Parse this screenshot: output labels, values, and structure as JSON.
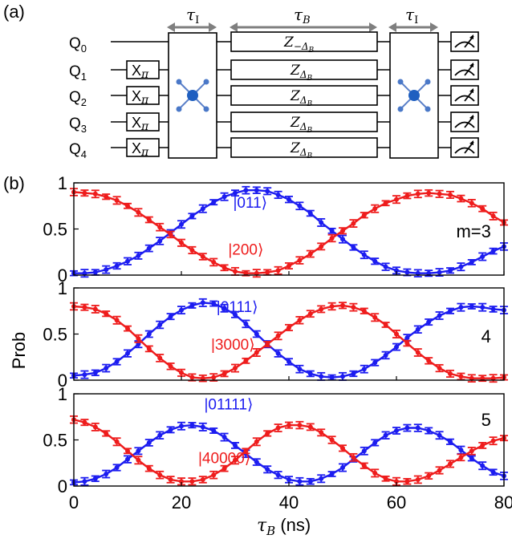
{
  "panel_a": {
    "label": "(a)",
    "qubits": [
      "Q",
      "Q",
      "Q",
      "Q",
      "Q"
    ],
    "qubit_subscripts": [
      "0",
      "1",
      "2",
      "3",
      "4"
    ],
    "prep_gate": "X",
    "prep_gate_sub": "π",
    "prep_rows": [
      1,
      2,
      3,
      4
    ],
    "interaction_time": "τ",
    "interaction_time_sub": "I",
    "bath_time": "τ",
    "bath_time_sub": "B",
    "z_gate": "Z",
    "z_sub_first": "−Δ",
    "z_sub_rest": "Δ",
    "z_sub_sub": "B"
  },
  "panel_b_label": "(b)",
  "colors": {
    "blue": "#1c1cf0",
    "red": "#ee1c1c",
    "gate_line": "#000000",
    "arrow": "#7f7f7f"
  },
  "chart_data": [
    {
      "type": "scatter",
      "panel": "m=3",
      "panel_tag": "m=3",
      "xlim": [
        0,
        80
      ],
      "ylim": [
        0,
        1
      ],
      "yticks": [
        "0",
        "0.5",
        "1"
      ],
      "x": [
        0,
        2,
        4,
        6,
        8,
        10,
        12,
        14,
        16,
        18,
        20,
        22,
        24,
        26,
        28,
        30,
        32,
        34,
        36,
        38,
        40,
        42,
        44,
        46,
        48,
        50,
        52,
        54,
        56,
        58,
        60,
        62,
        64,
        66,
        68,
        70,
        72,
        74,
        76,
        78,
        80
      ],
      "series": [
        {
          "name": "|011⟩",
          "color": "blue",
          "values": [
            0.02,
            0.02,
            0.03,
            0.06,
            0.1,
            0.15,
            0.21,
            0.29,
            0.37,
            0.46,
            0.55,
            0.64,
            0.72,
            0.79,
            0.85,
            0.89,
            0.92,
            0.92,
            0.91,
            0.87,
            0.82,
            0.75,
            0.67,
            0.57,
            0.48,
            0.39,
            0.3,
            0.22,
            0.15,
            0.09,
            0.05,
            0.03,
            0.02,
            0.02,
            0.03,
            0.05,
            0.09,
            0.14,
            0.2,
            0.26,
            0.31
          ]
        },
        {
          "name": "|200⟩",
          "color": "red",
          "values": [
            0.9,
            0.89,
            0.88,
            0.85,
            0.81,
            0.75,
            0.68,
            0.6,
            0.52,
            0.44,
            0.35,
            0.27,
            0.2,
            0.14,
            0.08,
            0.04,
            0.02,
            0.02,
            0.03,
            0.05,
            0.1,
            0.16,
            0.23,
            0.31,
            0.4,
            0.48,
            0.56,
            0.65,
            0.72,
            0.78,
            0.82,
            0.86,
            0.88,
            0.89,
            0.88,
            0.87,
            0.83,
            0.78,
            0.72,
            0.64,
            0.57
          ]
        }
      ]
    },
    {
      "type": "scatter",
      "panel": "m=4",
      "panel_tag": "4",
      "xlim": [
        0,
        80
      ],
      "ylim": [
        0,
        1
      ],
      "yticks": [
        "0",
        "0.5",
        "1"
      ],
      "x": [
        0,
        2,
        4,
        6,
        8,
        10,
        12,
        14,
        16,
        18,
        20,
        22,
        24,
        26,
        28,
        30,
        32,
        34,
        36,
        38,
        40,
        42,
        44,
        46,
        48,
        50,
        52,
        54,
        56,
        58,
        60,
        62,
        64,
        66,
        68,
        70,
        72,
        74,
        76,
        78,
        80
      ],
      "series": [
        {
          "name": "|0111⟩",
          "color": "blue",
          "values": [
            0.05,
            0.06,
            0.08,
            0.13,
            0.2,
            0.29,
            0.39,
            0.5,
            0.6,
            0.69,
            0.76,
            0.81,
            0.84,
            0.83,
            0.78,
            0.71,
            0.61,
            0.5,
            0.39,
            0.29,
            0.2,
            0.12,
            0.07,
            0.04,
            0.03,
            0.04,
            0.07,
            0.12,
            0.19,
            0.27,
            0.36,
            0.46,
            0.55,
            0.63,
            0.7,
            0.75,
            0.79,
            0.8,
            0.79,
            0.77,
            0.76
          ]
        },
        {
          "name": "|3000⟩",
          "color": "red",
          "values": [
            0.8,
            0.79,
            0.77,
            0.72,
            0.65,
            0.56,
            0.45,
            0.34,
            0.24,
            0.15,
            0.08,
            0.03,
            0.02,
            0.03,
            0.07,
            0.13,
            0.21,
            0.3,
            0.39,
            0.48,
            0.57,
            0.65,
            0.72,
            0.77,
            0.8,
            0.81,
            0.79,
            0.75,
            0.68,
            0.6,
            0.5,
            0.4,
            0.3,
            0.21,
            0.13,
            0.07,
            0.04,
            0.02,
            0.02,
            0.02,
            0.03
          ]
        }
      ]
    },
    {
      "type": "scatter",
      "panel": "m=5",
      "panel_tag": "5",
      "xlim": [
        0,
        80
      ],
      "ylim": [
        0,
        1
      ],
      "yticks": [
        "0",
        "0.5",
        "1"
      ],
      "xticks": [
        "0",
        "20",
        "40",
        "60",
        "80"
      ],
      "xlabel": "τ",
      "xlabel_sub": "B",
      "xlabel_unit": " (ns)",
      "x": [
        0,
        2,
        4,
        6,
        8,
        10,
        12,
        14,
        16,
        18,
        20,
        22,
        24,
        26,
        28,
        30,
        32,
        34,
        36,
        38,
        40,
        42,
        44,
        46,
        48,
        50,
        52,
        54,
        56,
        58,
        60,
        62,
        64,
        66,
        68,
        70,
        72,
        74,
        76,
        78,
        80
      ],
      "series": [
        {
          "name": "|01111⟩",
          "color": "blue",
          "values": [
            0.04,
            0.05,
            0.08,
            0.13,
            0.2,
            0.29,
            0.38,
            0.47,
            0.55,
            0.61,
            0.65,
            0.66,
            0.64,
            0.6,
            0.53,
            0.44,
            0.35,
            0.26,
            0.18,
            0.12,
            0.07,
            0.05,
            0.05,
            0.08,
            0.13,
            0.2,
            0.29,
            0.38,
            0.47,
            0.55,
            0.6,
            0.63,
            0.63,
            0.6,
            0.55,
            0.48,
            0.39,
            0.3,
            0.22,
            0.15,
            0.11
          ]
        },
        {
          "name": "|40000⟩",
          "color": "red",
          "values": [
            0.72,
            0.69,
            0.64,
            0.57,
            0.48,
            0.38,
            0.28,
            0.19,
            0.12,
            0.07,
            0.05,
            0.05,
            0.07,
            0.12,
            0.19,
            0.28,
            0.38,
            0.48,
            0.57,
            0.63,
            0.66,
            0.66,
            0.64,
            0.58,
            0.5,
            0.41,
            0.31,
            0.22,
            0.14,
            0.08,
            0.05,
            0.05,
            0.07,
            0.11,
            0.17,
            0.24,
            0.31,
            0.38,
            0.44,
            0.49,
            0.52
          ]
        }
      ]
    }
  ],
  "ylabel": "Prob"
}
